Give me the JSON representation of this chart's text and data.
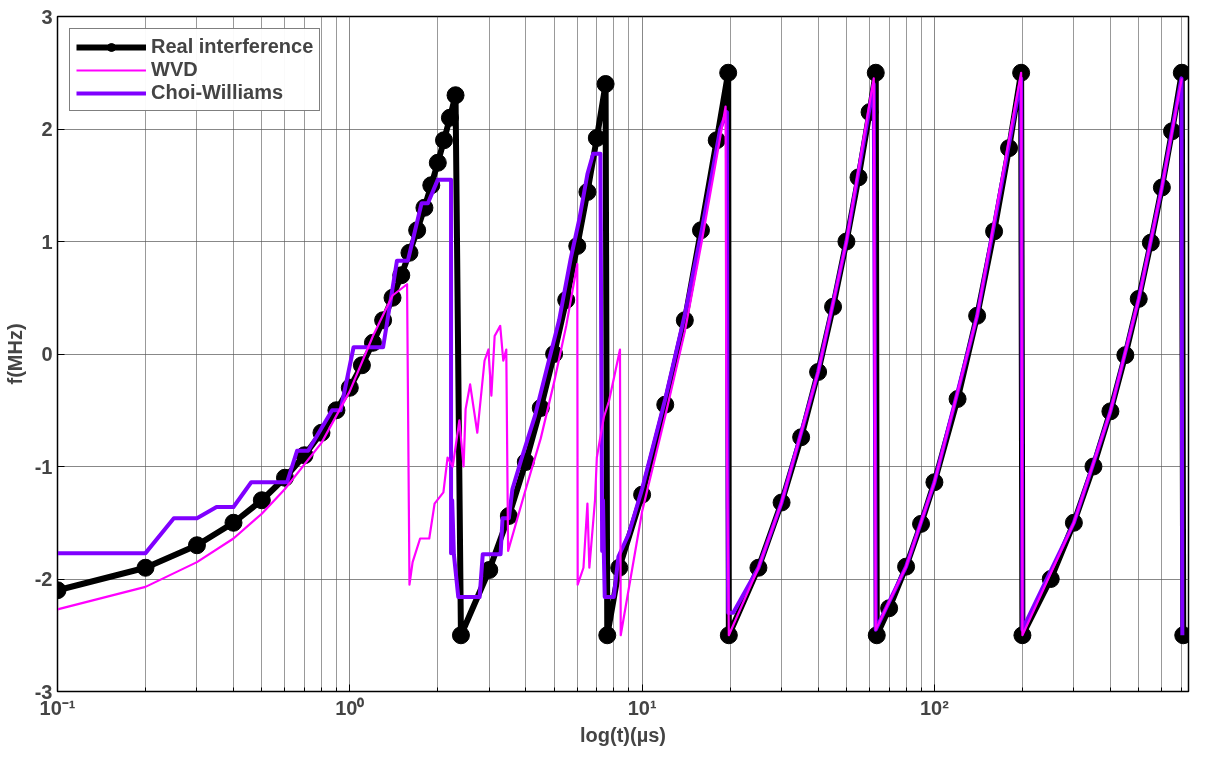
{
  "chart_data": {
    "type": "line",
    "xlabel": "log(t)(µs)",
    "ylabel": "f(MHz)",
    "log": "x",
    "grid": true,
    "legend": "top left",
    "xlim": [
      0.1,
      740
    ],
    "ylim": [
      -3,
      3
    ],
    "xticks": [
      {
        "value": 0.1,
        "label": "10⁻¹"
      },
      {
        "value": 0.2,
        "label": null
      },
      {
        "value": 0.3,
        "label": null
      },
      {
        "value": 0.4,
        "label": null
      },
      {
        "value": 0.5,
        "label": null
      },
      {
        "value": 0.6,
        "label": null
      },
      {
        "value": 0.7,
        "label": null
      },
      {
        "value": 0.8,
        "label": null
      },
      {
        "value": 0.9,
        "label": null
      },
      {
        "value": 1,
        "label": "10⁰"
      },
      {
        "value": 2,
        "label": null
      },
      {
        "value": 3,
        "label": null
      },
      {
        "value": 4,
        "label": null
      },
      {
        "value": 5,
        "label": null
      },
      {
        "value": 6,
        "label": null
      },
      {
        "value": 7,
        "label": null
      },
      {
        "value": 8,
        "label": null
      },
      {
        "value": 9,
        "label": null
      },
      {
        "value": 10,
        "label": "10¹"
      },
      {
        "value": 20,
        "label": null
      },
      {
        "value": 30,
        "label": null
      },
      {
        "value": 40,
        "label": null
      },
      {
        "value": 50,
        "label": null
      },
      {
        "value": 60,
        "label": null
      },
      {
        "value": 70,
        "label": null
      },
      {
        "value": 80,
        "label": null
      },
      {
        "value": 90,
        "label": null
      },
      {
        "value": 100,
        "label": "10²"
      },
      {
        "value": 200,
        "label": null
      },
      {
        "value": 300,
        "label": null
      },
      {
        "value": 400,
        "label": null
      },
      {
        "value": 500,
        "label": null
      },
      {
        "value": 600,
        "label": null
      },
      {
        "value": 700,
        "label": null
      }
    ],
    "yticks": [
      -3,
      -2,
      -1,
      0,
      1,
      2,
      3
    ],
    "series": [
      {
        "name": "Real interference",
        "color": "#000000",
        "marker": "circle",
        "line_style": "solid",
        "x": [
          0.1,
          0.2,
          0.3,
          0.4,
          0.5,
          0.6,
          0.7,
          0.8,
          0.9,
          1.0,
          1.1,
          1.2,
          1.3,
          1.4,
          1.5,
          1.6,
          1.7,
          1.8,
          1.9,
          2.0,
          2.1,
          2.2,
          2.3,
          2.4,
          3,
          3.5,
          4,
          4.5,
          5,
          5.5,
          6,
          6.5,
          7,
          7.5,
          7.6,
          8.35,
          10,
          12,
          14,
          15.9,
          18,
          19.7,
          19.8,
          25,
          30,
          35,
          40,
          45,
          50,
          55,
          60,
          63,
          63.5,
          70,
          80,
          90,
          100,
          120,
          140,
          160,
          180,
          198,
          200,
          250,
          300,
          350,
          400,
          450,
          500,
          550,
          600,
          650,
          702,
          710
        ],
        "values": [
          -2.1,
          -1.9,
          -1.7,
          -1.5,
          -1.3,
          -1.1,
          -0.9,
          -0.7,
          -0.5,
          -0.3,
          -0.1,
          0.1,
          0.3,
          0.5,
          0.7,
          0.9,
          1.1,
          1.3,
          1.5,
          1.7,
          1.9,
          2.1,
          2.3,
          -2.5,
          -1.92,
          -1.44,
          -0.96,
          -0.48,
          0.0,
          0.48,
          0.96,
          1.44,
          1.92,
          2.4,
          -2.5,
          -1.9,
          -1.25,
          -0.45,
          0.3,
          1.1,
          1.9,
          2.5,
          -2.5,
          -1.9,
          -1.32,
          -0.74,
          -0.16,
          0.42,
          1.0,
          1.57,
          2.15,
          2.5,
          -2.5,
          -2.26,
          -1.89,
          -1.51,
          -1.14,
          -0.4,
          0.34,
          1.09,
          1.83,
          2.5,
          -2.5,
          -2.0,
          -1.5,
          -1.0,
          -0.51,
          -0.01,
          0.49,
          0.99,
          1.48,
          1.98,
          2.5,
          -2.5
        ]
      },
      {
        "name": "WVD",
        "color": "#ff00ff",
        "marker": "none",
        "line_style": "solid",
        "x": [
          0.1,
          0.2,
          0.3,
          0.4,
          0.5,
          0.6,
          0.8,
          1.0,
          1.2,
          1.4,
          1.57,
          1.6,
          1.64,
          1.74,
          1.87,
          1.95,
          2.09,
          2.16,
          2.25,
          2.37,
          2.45,
          2.49,
          2.58,
          2.73,
          2.89,
          2.98,
          3.05,
          3.13,
          3.27,
          3.35,
          3.43,
          3.48,
          4,
          4.5,
          5,
          5.5,
          6.0,
          6.02,
          6.3,
          6.5,
          6.6,
          6.9,
          7.0,
          7.4,
          7.7,
          8.0,
          8.4,
          8.45,
          10,
          12,
          14,
          16,
          18,
          19.3,
          19.4,
          19.8,
          25,
          30,
          40,
          50,
          62,
          63,
          80,
          100,
          140,
          198,
          199,
          200,
          300,
          400,
          500,
          600,
          702
        ],
        "values": [
          -2.27,
          -2.07,
          -1.85,
          -1.64,
          -1.42,
          -1.2,
          -0.79,
          -0.33,
          0.16,
          0.52,
          0.62,
          -2.05,
          -1.85,
          -1.64,
          -1.64,
          -1.33,
          -1.23,
          -0.92,
          -1.0,
          -0.59,
          -1.0,
          -0.49,
          -0.27,
          -0.7,
          -0.06,
          0.04,
          -0.37,
          0.16,
          0.25,
          -0.06,
          0.04,
          -1.75,
          -1.2,
          -0.75,
          -0.25,
          0.25,
          0.8,
          -2.05,
          -1.9,
          -1.33,
          -1.9,
          -1.3,
          -0.92,
          -0.56,
          -0.42,
          -0.22,
          0.04,
          -2.5,
          -1.4,
          -0.55,
          0.2,
          1.0,
          1.75,
          2.2,
          -0.17,
          -2.5,
          -1.9,
          -1.32,
          -0.16,
          1.0,
          2.45,
          -2.45,
          -1.89,
          -1.14,
          0.34,
          2.5,
          0.14,
          -2.5,
          -1.5,
          -0.51,
          0.49,
          1.48,
          2.45
        ]
      },
      {
        "name": "Choi-Williams",
        "color": "#8000ff",
        "marker": "none",
        "line_style": "solid",
        "x": [
          0.1,
          0.2,
          0.25,
          0.3,
          0.35,
          0.4,
          0.46,
          0.61,
          0.66,
          0.72,
          0.87,
          0.93,
          1.03,
          1.3,
          1.45,
          1.58,
          1.76,
          1.85,
          2.0,
          2.22,
          2.22,
          2.24,
          2.27,
          2.35,
          2.78,
          2.85,
          3.28,
          3.33,
          3.5,
          3.6,
          3.9,
          4.3,
          4.7,
          5.2,
          5.7,
          6.1,
          6.5,
          6.8,
          7.2,
          7.3,
          7.35,
          7.4,
          7.45,
          8.0,
          8.3,
          9,
          10,
          12,
          14,
          16,
          18.5,
          19.5,
          19.6,
          19.7,
          20.5,
          25,
          30,
          40,
          50,
          62,
          63,
          80,
          100,
          140,
          198,
          200,
          300,
          400,
          500,
          600,
          700,
          705
        ],
        "values": [
          -1.77,
          -1.77,
          -1.46,
          -1.46,
          -1.36,
          -1.36,
          -1.14,
          -1.14,
          -0.86,
          -0.86,
          -0.5,
          -0.5,
          0.06,
          0.06,
          0.83,
          0.83,
          1.34,
          1.34,
          1.55,
          1.55,
          -1.77,
          -1.3,
          -1.78,
          -2.16,
          -2.16,
          -1.78,
          -1.78,
          -1.46,
          -1.46,
          -1.2,
          -0.9,
          -0.55,
          -0.15,
          0.3,
          0.85,
          1.2,
          1.6,
          1.78,
          1.78,
          -1.75,
          -1.3,
          -1.8,
          -2.16,
          -2.16,
          -1.8,
          -1.6,
          -1.2,
          -0.4,
          0.35,
          1.1,
          2.0,
          2.15,
          -1.3,
          -2.3,
          -2.3,
          -1.9,
          -1.32,
          -0.16,
          1.0,
          2.4,
          -2.45,
          -1.89,
          -1.14,
          0.34,
          2.45,
          -2.45,
          -1.5,
          -0.51,
          0.49,
          1.48,
          2.45,
          -2.5
        ]
      }
    ]
  }
}
